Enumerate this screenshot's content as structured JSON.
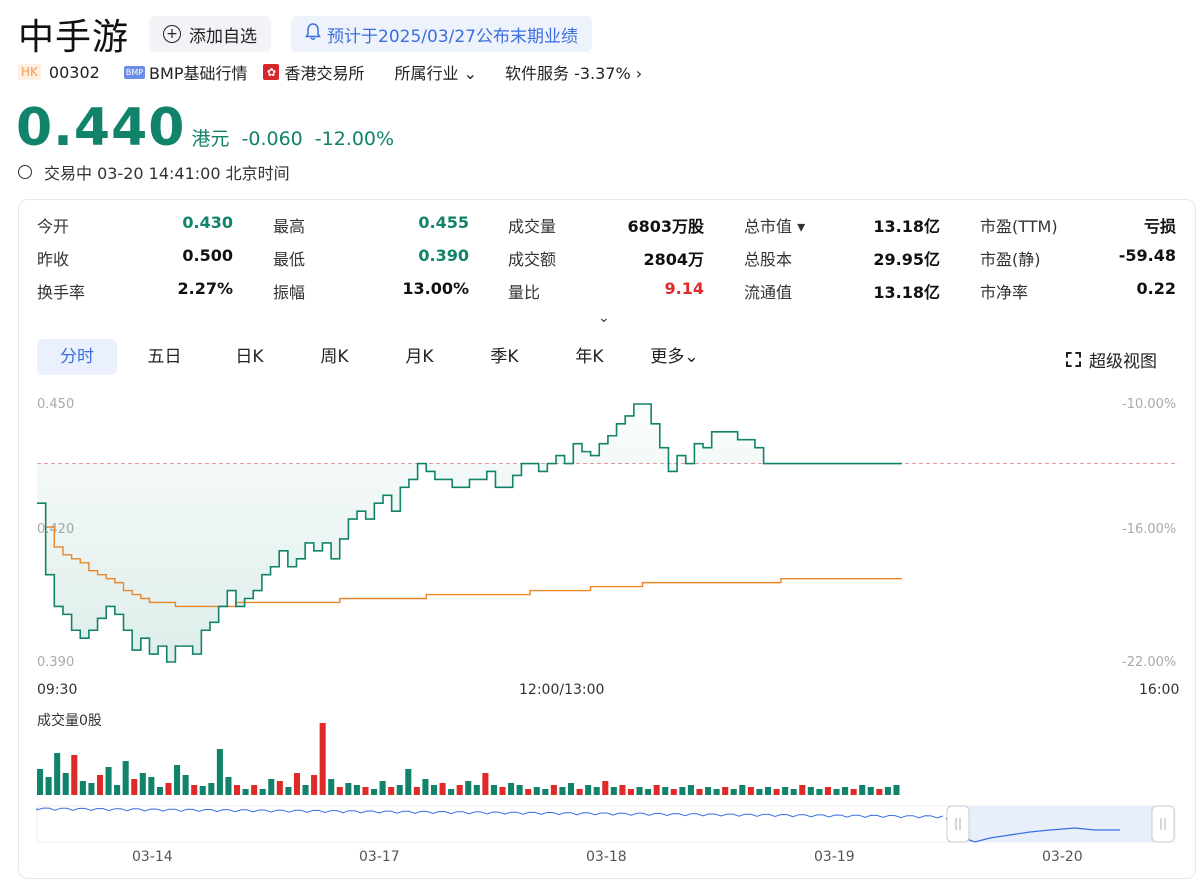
{
  "header": {
    "stock_name": "中手游",
    "add_watchlist": "添加自选",
    "earnings_notice": "预计于2025/03/27公布末期业绩"
  },
  "meta": {
    "market_badge": "HK",
    "code": "00302",
    "bmp_badge": "BMP",
    "quote_type": "BMP基础行情",
    "exchange": "香港交易所",
    "industry_label": "所属行业",
    "sector": "软件服务 -3.37%"
  },
  "quote": {
    "price": "0.440",
    "currency": "港元",
    "change": "-0.060",
    "change_pct": "-12.00%",
    "status": "交易中 03-20 14:41:00 北京时间"
  },
  "stats": [
    [
      {
        "label": "今开",
        "value": "0.430",
        "color": "down"
      },
      {
        "label": "最高",
        "value": "0.455",
        "color": "down"
      },
      {
        "label": "成交量",
        "value": "6803万股"
      },
      {
        "label": "总市值 ▾",
        "value": "13.18亿"
      },
      {
        "label": "市盈(TTM)",
        "value": "亏损"
      }
    ],
    [
      {
        "label": "昨收",
        "value": "0.500"
      },
      {
        "label": "最低",
        "value": "0.390",
        "color": "down"
      },
      {
        "label": "成交额",
        "value": "2804万"
      },
      {
        "label": "总股本",
        "value": "29.95亿"
      },
      {
        "label": "市盈(静)",
        "value": "-59.48"
      }
    ],
    [
      {
        "label": "换手率",
        "value": "2.27%"
      },
      {
        "label": "振幅",
        "value": "13.00%"
      },
      {
        "label": "量比",
        "value": "9.14",
        "color": "up"
      },
      {
        "label": "流通值",
        "value": "13.18亿"
      },
      {
        "label": "市净率",
        "value": "0.22"
      }
    ]
  ],
  "tabs": [
    "分时",
    "五日",
    "日K",
    "周K",
    "月K",
    "季K",
    "年K",
    "更多"
  ],
  "super_view": "超级视图",
  "axes": {
    "y_left": [
      "0.450",
      "0.420",
      "0.390"
    ],
    "y_right": [
      "-10.00%",
      "-16.00%",
      "-22.00%"
    ],
    "x": [
      "09:30",
      "12:00/13:00",
      "16:00"
    ]
  },
  "volume_title": "成交量0股",
  "navigator_dates": [
    "03-14",
    "03-17",
    "03-18",
    "03-19",
    "03-20"
  ],
  "colors": {
    "down": "#11836a",
    "up": "#e02a2a",
    "avg_line": "#e8862a",
    "accent": "#3b6fe0"
  },
  "chart_data": {
    "type": "line",
    "y_range": [
      0.39,
      0.455
    ],
    "prev_close": 0.5,
    "session": [
      "09:30",
      "16:00"
    ],
    "series": [
      {
        "x": [
          0,
          3,
          6,
          9,
          12,
          15,
          18,
          21,
          24,
          27,
          30,
          33,
          36,
          39,
          42,
          45,
          48,
          51,
          54,
          57,
          60,
          63,
          66,
          69,
          72,
          75,
          78,
          81,
          84,
          87,
          90,
          93,
          96,
          99,
          102,
          105,
          108,
          111,
          114,
          117,
          120,
          123,
          126,
          129,
          132,
          135,
          138,
          141,
          144,
          147,
          150,
          153,
          156,
          159,
          162,
          165,
          168,
          171,
          174,
          177,
          180,
          183,
          186,
          189,
          192,
          195,
          198,
          201,
          204,
          207,
          210,
          213,
          216,
          219,
          222,
          225,
          228,
          231,
          234,
          237,
          240,
          243,
          246,
          249,
          252,
          255,
          258,
          261,
          264,
          267,
          270,
          273,
          276,
          279,
          282,
          285,
          288,
          291,
          294,
          297,
          300
        ],
        "values": [
          0.43,
          0.412,
          0.404,
          0.402,
          0.398,
          0.396,
          0.398,
          0.401,
          0.404,
          0.402,
          0.398,
          0.393,
          0.396,
          0.392,
          0.394,
          0.39,
          0.394,
          0.394,
          0.392,
          0.398,
          0.4,
          0.404,
          0.408,
          0.404,
          0.406,
          0.408,
          0.412,
          0.414,
          0.418,
          0.414,
          0.416,
          0.42,
          0.418,
          0.42,
          0.416,
          0.421,
          0.426,
          0.428,
          0.426,
          0.43,
          0.432,
          0.428,
          0.434,
          0.436,
          0.44,
          0.438,
          0.436,
          0.436,
          0.434,
          0.434,
          0.436,
          0.436,
          0.438,
          0.434,
          0.434,
          0.437,
          0.44,
          0.44,
          0.438,
          0.44,
          0.442,
          0.44,
          0.445,
          0.443,
          0.442,
          0.445,
          0.447,
          0.45,
          0.452,
          0.455,
          0.455,
          0.45,
          0.444,
          0.438,
          0.442,
          0.44,
          0.445,
          0.444,
          0.448,
          0.448,
          0.448,
          0.446,
          0.446,
          0.444,
          0.44,
          0.44,
          0.44,
          0.44,
          0.44,
          0.44,
          0.44,
          0.44,
          0.44,
          0.44,
          0.44,
          0.44,
          0.44,
          0.44,
          0.44,
          0.44,
          0.44
        ]
      },
      {
        "x": [
          0,
          3,
          6,
          9,
          12,
          15,
          18,
          21,
          24,
          27,
          30,
          33,
          36,
          39,
          42,
          45,
          48,
          51,
          54,
          57,
          60,
          63,
          66,
          69,
          72,
          75,
          78,
          81,
          84,
          87,
          90,
          93,
          96,
          99,
          102,
          105,
          108,
          111,
          114,
          117,
          120,
          123,
          126,
          129,
          132,
          135,
          138,
          141,
          144,
          147,
          150,
          153,
          156,
          159,
          162,
          165,
          168,
          171,
          174,
          177,
          180,
          183,
          186,
          189,
          192,
          195,
          198,
          201,
          204,
          207,
          210,
          213,
          216,
          219,
          222,
          225,
          228,
          231,
          234,
          237,
          240,
          243,
          246,
          249,
          252,
          255,
          258,
          261,
          264,
          267,
          270,
          273,
          276,
          279,
          282,
          285,
          288,
          291,
          294,
          297,
          300
        ],
        "values": [
          0.43,
          0.424,
          0.419,
          0.417,
          0.416,
          0.415,
          0.413,
          0.412,
          0.411,
          0.41,
          0.408,
          0.407,
          0.406,
          0.405,
          0.405,
          0.405,
          0.404,
          0.404,
          0.404,
          0.404,
          0.404,
          0.404,
          0.404,
          0.405,
          0.405,
          0.405,
          0.405,
          0.405,
          0.405,
          0.405,
          0.405,
          0.405,
          0.405,
          0.405,
          0.405,
          0.406,
          0.406,
          0.406,
          0.406,
          0.406,
          0.406,
          0.406,
          0.406,
          0.406,
          0.406,
          0.407,
          0.407,
          0.407,
          0.407,
          0.407,
          0.407,
          0.407,
          0.407,
          0.407,
          0.407,
          0.407,
          0.407,
          0.408,
          0.408,
          0.408,
          0.408,
          0.408,
          0.408,
          0.408,
          0.409,
          0.409,
          0.409,
          0.409,
          0.409,
          0.409,
          0.41,
          0.41,
          0.41,
          0.41,
          0.41,
          0.41,
          0.41,
          0.41,
          0.41,
          0.41,
          0.41,
          0.41,
          0.41,
          0.41,
          0.41,
          0.41,
          0.411,
          0.411,
          0.411,
          0.411,
          0.411,
          0.411,
          0.411,
          0.411,
          0.411,
          0.411,
          0.411,
          0.411,
          0.411,
          0.411,
          0.411
        ]
      }
    ],
    "volume": [
      26,
      18,
      42,
      22,
      40,
      14,
      12,
      20,
      28,
      10,
      34,
      16,
      22,
      18,
      8,
      12,
      30,
      20,
      10,
      9,
      12,
      46,
      18,
      10,
      6,
      10,
      6,
      16,
      14,
      8,
      22,
      10,
      20,
      72,
      16,
      8,
      12,
      10,
      8,
      6,
      14,
      8,
      10,
      26,
      8,
      16,
      10,
      12,
      6,
      10,
      14,
      10,
      22,
      10,
      8,
      12,
      10,
      6,
      8,
      6,
      10,
      8,
      12,
      6,
      10,
      8,
      14,
      8,
      10,
      6,
      8,
      6,
      10,
      8,
      6,
      8,
      10,
      6,
      8,
      6,
      8,
      6,
      10,
      8,
      6,
      8,
      6,
      8,
      6,
      10,
      8,
      6,
      8,
      6,
      8,
      6,
      10,
      8,
      6,
      8,
      10
    ],
    "volume_dir": [
      "d",
      "d",
      "d",
      "d",
      "u",
      "d",
      "d",
      "u",
      "d",
      "d",
      "d",
      "u",
      "d",
      "d",
      "d",
      "u",
      "d",
      "d",
      "u",
      "d",
      "d",
      "d",
      "d",
      "u",
      "d",
      "u",
      "d",
      "d",
      "u",
      "d",
      "u",
      "d",
      "u",
      "u",
      "d",
      "u",
      "d",
      "d",
      "u",
      "d",
      "d",
      "u",
      "d",
      "d",
      "u",
      "d",
      "d",
      "u",
      "d",
      "u",
      "d",
      "d",
      "u",
      "d",
      "u",
      "d",
      "d",
      "u",
      "d",
      "d",
      "u",
      "d",
      "d",
      "u",
      "d",
      "d",
      "u",
      "d",
      "u",
      "u",
      "d",
      "d",
      "u",
      "d",
      "u",
      "d",
      "d",
      "u",
      "d",
      "d",
      "u",
      "d",
      "d",
      "u",
      "d",
      "d",
      "u",
      "d",
      "d",
      "u",
      "d",
      "d",
      "u",
      "d",
      "d",
      "u",
      "d",
      "d",
      "u",
      "d",
      "d"
    ]
  }
}
